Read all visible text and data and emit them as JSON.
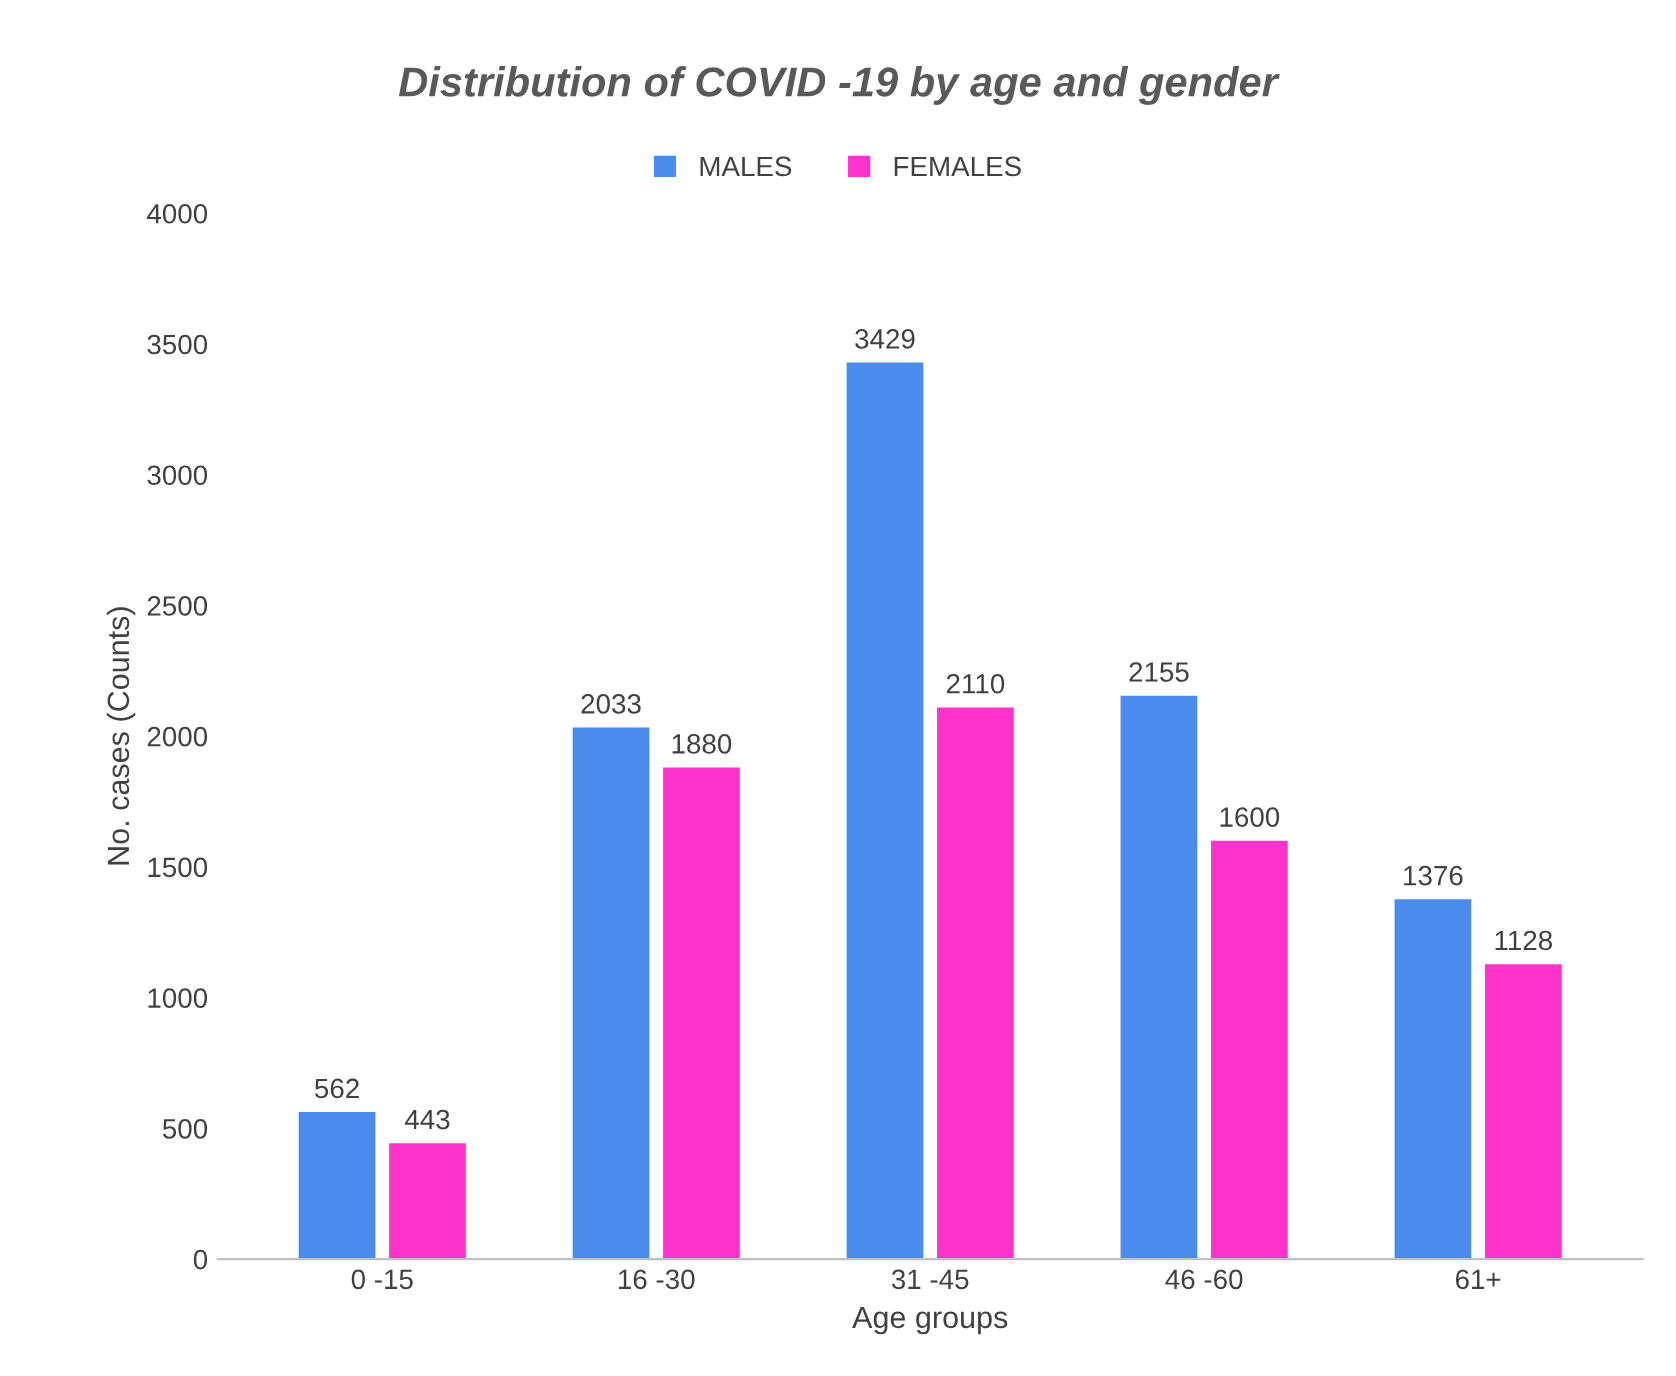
{
  "chart_data": {
    "type": "bar",
    "title": "Distribution of COVID -19 by age and gender",
    "xlabel": "Age groups",
    "ylabel": "No. cases (Counts)",
    "categories": [
      "0 -15",
      "16 -30",
      "31 -45",
      "46 -60",
      "61+"
    ],
    "series": [
      {
        "name": "MALES",
        "color": "#4a8cec",
        "values": [
          562,
          2033,
          3429,
          2155,
          1376
        ]
      },
      {
        "name": "FEMALES",
        "color": "#ff33cc",
        "values": [
          443,
          1880,
          2110,
          1600,
          1128
        ]
      }
    ],
    "ylim": [
      0,
      4000
    ],
    "yticks": [
      0,
      500,
      1000,
      1500,
      2000,
      2500,
      3000,
      3500,
      4000
    ],
    "grid": false,
    "legend": "top",
    "data_labels": true
  }
}
